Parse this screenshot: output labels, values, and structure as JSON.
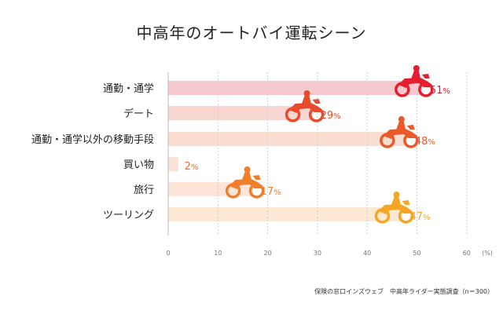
{
  "chart_data": {
    "type": "bar",
    "title": "中高年のオートバイ運転シーン",
    "categories": [
      "通勤・通学",
      "デート",
      "通勤・通学以外の移動手段",
      "買い物",
      "旅行",
      "ツーリング"
    ],
    "values": [
      51,
      29,
      48,
      2,
      17,
      47
    ],
    "value_suffix": "%",
    "bar_colors": [
      "#f6c9cf",
      "#f8d7d3",
      "#f9ddd1",
      "#fbe2d7",
      "#fde6d9",
      "#fde8d4"
    ],
    "label_colors": [
      "#e5202e",
      "#e84a2c",
      "#ea5a2a",
      "#ee6a2c",
      "#f07e2a",
      "#f2a22c"
    ],
    "icon_colors": [
      "#e5202e",
      "#e84a2c",
      "#ea5a2a",
      "#ee6a2c",
      "#f07e2a",
      "#f5a623"
    ],
    "x_ticks": [
      0,
      10,
      20,
      30,
      40,
      50,
      60
    ],
    "x_unit": "(%)",
    "xlim": [
      0,
      60
    ],
    "grid": true,
    "source": "保険の窓口インズウェブ　中高年ライダー実態調査（n＝300）"
  }
}
